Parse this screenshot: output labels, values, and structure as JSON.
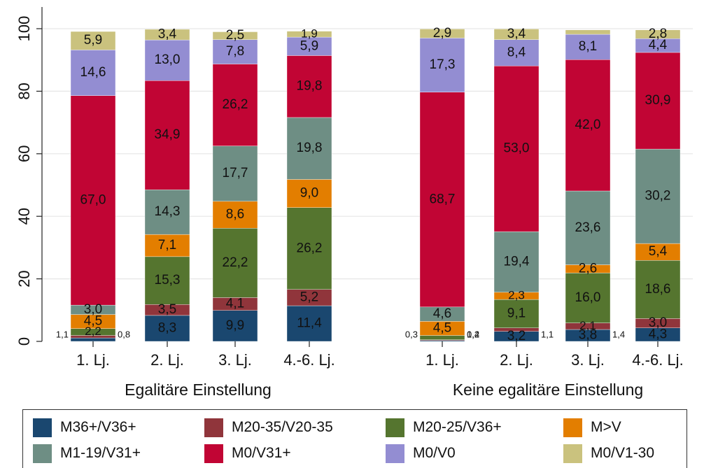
{
  "chart_data": {
    "type": "bar",
    "stacked": true,
    "ylim": [
      0,
      100
    ],
    "yticks": [
      "0",
      "20",
      "40",
      "60",
      "80",
      "100"
    ],
    "grid": true,
    "legend_position": "bottom",
    "groups": [
      {
        "label": "Egalitäre Einstellung",
        "categories": [
          "1. Lj.",
          "2. Lj.",
          "3. Lj.",
          "4.-6. Lj."
        ],
        "series_values": [
          [
            1.1,
            8.3,
            9.9,
            11.4
          ],
          [
            0.8,
            3.5,
            4.1,
            5.2
          ],
          [
            2.2,
            15.3,
            22.2,
            26.2
          ],
          [
            4.5,
            7.1,
            8.6,
            9.0
          ],
          [
            3.0,
            14.3,
            17.7,
            19.8
          ],
          [
            67.0,
            34.9,
            26.2,
            19.8
          ],
          [
            14.6,
            13.0,
            7.8,
            5.9
          ],
          [
            5.9,
            3.4,
            2.5,
            1.9
          ]
        ],
        "labels": [
          [
            "1,1",
            "8,3",
            "9,9",
            "11,4"
          ],
          [
            "0,8",
            "3,5",
            "4,1",
            "5,2"
          ],
          [
            "2,2",
            "15,3",
            "22,2",
            "26,2"
          ],
          [
            "4,5",
            "7,1",
            "8,6",
            "9,0"
          ],
          [
            "3,0",
            "14,3",
            "17,7",
            "19,8"
          ],
          [
            "67,0",
            "34,9",
            "26,2",
            "19,8"
          ],
          [
            "14,6",
            "13,0",
            "7,8",
            "5,9"
          ],
          [
            "5,9",
            "3,4",
            "2,5",
            "1,9"
          ]
        ]
      },
      {
        "label": "Keine egalitäre Einstellung",
        "categories": [
          "1. Lj.",
          "2. Lj.",
          "3. Lj.",
          "4.-6. Lj."
        ],
        "series_values": [
          [
            0.3,
            3.2,
            3.8,
            4.3
          ],
          [
            0.2,
            1.1,
            2.1,
            3.0
          ],
          [
            1.4,
            9.1,
            16.0,
            18.6
          ],
          [
            4.5,
            2.3,
            2.6,
            5.4
          ],
          [
            4.6,
            19.4,
            23.6,
            30.2
          ],
          [
            68.7,
            53.0,
            42.0,
            30.9
          ],
          [
            17.3,
            8.4,
            8.1,
            4.4
          ],
          [
            2.9,
            3.4,
            1.4,
            2.8
          ]
        ],
        "labels": [
          [
            "0,3",
            "3,2",
            "3,8",
            "4,3"
          ],
          [
            "0,2",
            "1,1",
            "2,1",
            "3,0"
          ],
          [
            "1,4",
            "9,1",
            "16,0",
            "18,6"
          ],
          [
            "4,5",
            "2,3",
            "2,6",
            "5,4"
          ],
          [
            "4,6",
            "19,4",
            "23,6",
            "30,2"
          ],
          [
            "68,7",
            "53,0",
            "42,0",
            "30,9"
          ],
          [
            "17,3",
            "8,4",
            "8,1",
            "4,4"
          ],
          [
            "2,9",
            "3,4",
            "1,4",
            "2,8"
          ]
        ]
      }
    ],
    "series": [
      {
        "name": "M36+/V36+",
        "color": "#1a476f"
      },
      {
        "name": "M20-35/V20-35",
        "color": "#90353b"
      },
      {
        "name": "M20-25/V36+",
        "color": "#55752f"
      },
      {
        "name": "M>V",
        "color": "#e37e00"
      },
      {
        "name": "M1-19/V31+",
        "color": "#6e8e84"
      },
      {
        "name": "M0/V31+",
        "color": "#c10534"
      },
      {
        "name": "M0/V0",
        "color": "#938dd2"
      },
      {
        "name": "M0/V1-30",
        "color": "#cac27e"
      }
    ]
  }
}
